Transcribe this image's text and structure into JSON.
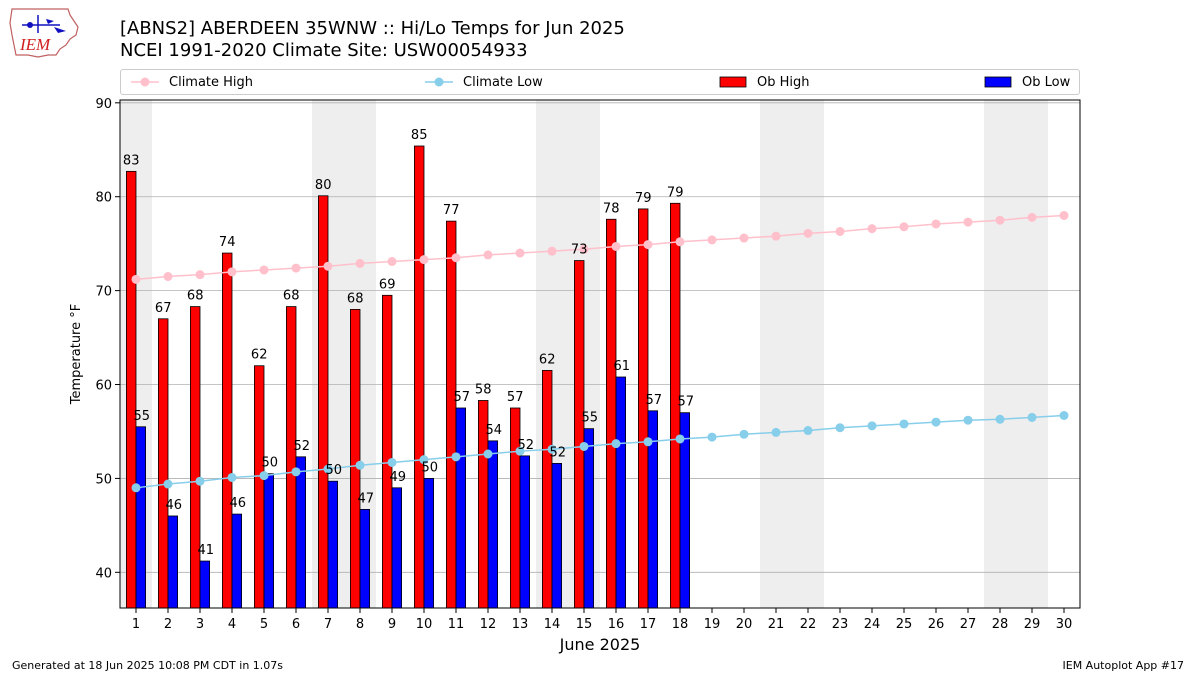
{
  "logo": {
    "text": "IEM"
  },
  "title": {
    "line1": "[ABNS2] ABERDEEN 35WNW :: Hi/Lo Temps for Jun 2025",
    "line2": "NCEI 1991-2020 Climate Site: USW00054933"
  },
  "legend": {
    "climate_high": "Climate High",
    "climate_low": "Climate Low",
    "ob_high": "Ob High",
    "ob_low": "Ob Low"
  },
  "colors": {
    "climate_high": "#ffc0cb",
    "climate_low": "#87ceeb",
    "ob_high": "#ff0000",
    "ob_low": "#0000ff",
    "weekend_band": "#eeeeee",
    "grid": "#b0b0b0"
  },
  "footer": {
    "left": "Generated at 18 Jun 2025 10:08 PM CDT in 1.07s",
    "right": "IEM Autoplot App #17"
  },
  "chart_data": {
    "type": "bar",
    "xlabel": "June 2025",
    "ylabel": "Temperature °F",
    "ylim": [
      36.2,
      90.3
    ],
    "yticks": [
      40,
      50,
      60,
      70,
      80,
      90
    ],
    "days": [
      1,
      2,
      3,
      4,
      5,
      6,
      7,
      8,
      9,
      10,
      11,
      12,
      13,
      14,
      15,
      16,
      17,
      18,
      19,
      20,
      21,
      22,
      23,
      24,
      25,
      26,
      27,
      28,
      29,
      30
    ],
    "shaded_weekend_days": [
      1,
      7,
      8,
      14,
      15,
      21,
      22,
      28,
      29
    ],
    "series": [
      {
        "name": "Ob High",
        "kind": "bar",
        "values": [
          82.7,
          67.0,
          68.3,
          74.0,
          62.0,
          68.3,
          80.1,
          68.0,
          69.5,
          85.4,
          77.4,
          58.3,
          57.5,
          61.5,
          73.2,
          77.6,
          78.7,
          79.3
        ],
        "labels": [
          "83",
          "67",
          "68",
          "74",
          "62",
          "68",
          "80",
          "68",
          "69",
          "85",
          "77",
          "58",
          "57",
          "62",
          "73",
          "78",
          "79",
          "79"
        ]
      },
      {
        "name": "Ob Low",
        "kind": "bar",
        "values": [
          55.5,
          46.0,
          41.2,
          46.2,
          50.5,
          52.3,
          49.7,
          46.7,
          49.0,
          50.0,
          57.5,
          54.0,
          52.4,
          51.6,
          55.3,
          60.8,
          57.2,
          57.0
        ],
        "labels": [
          "55",
          "46",
          "41",
          "46",
          "50",
          "52",
          "50",
          "47",
          "49",
          "50",
          "57",
          "54",
          "52",
          "52",
          "55",
          "61",
          "57",
          "57"
        ]
      },
      {
        "name": "Climate High",
        "kind": "line",
        "values": [
          71.2,
          71.5,
          71.7,
          72.0,
          72.2,
          72.4,
          72.6,
          72.9,
          73.1,
          73.3,
          73.5,
          73.8,
          74.0,
          74.2,
          74.4,
          74.7,
          74.9,
          75.2,
          75.4,
          75.6,
          75.8,
          76.1,
          76.3,
          76.6,
          76.8,
          77.1,
          77.3,
          77.5,
          77.8,
          78.0
        ]
      },
      {
        "name": "Climate Low",
        "kind": "line",
        "values": [
          49.0,
          49.4,
          49.7,
          50.1,
          50.3,
          50.7,
          51.0,
          51.4,
          51.7,
          52.0,
          52.3,
          52.6,
          52.9,
          53.1,
          53.4,
          53.7,
          53.9,
          54.2,
          54.4,
          54.7,
          54.9,
          55.1,
          55.4,
          55.6,
          55.8,
          56.0,
          56.2,
          56.3,
          56.5,
          56.7
        ]
      }
    ]
  }
}
